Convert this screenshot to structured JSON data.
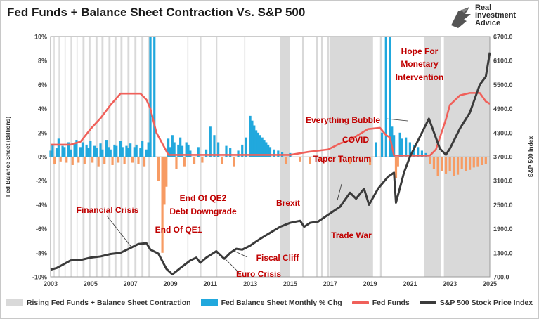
{
  "title": "Fed Funds + Balance Sheet Contraction Vs. S&P 500",
  "logo": {
    "line1": "Real",
    "line2": "Investment",
    "line3": "Advice"
  },
  "colors": {
    "shade": "#d9d9d9",
    "bs_pos": "#21a8dd",
    "bs_neg": "#f79b63",
    "fed_funds": "#f0605a",
    "spx": "#3b3b3b",
    "annotation": "#c00000"
  },
  "legend": {
    "shade": "Rising Fed Funds + Balance Sheet Contraction",
    "bs": "Fed Balance Sheet Monthly % Chg",
    "ff": "Fed Funds",
    "spx": "S&P 500 Stock Price Index"
  },
  "chart_data": {
    "type": "bar+line",
    "x_range": [
      2003,
      2025
    ],
    "x_ticks": [
      "2003",
      "2005",
      "2007",
      "2009",
      "2011",
      "2013",
      "2015",
      "2017",
      "2019",
      "2021",
      "2023",
      "2025"
    ],
    "y_left_label": "Fed Balance Sheet (Billions)",
    "y_left_ticks": [
      "10%",
      "8%",
      "6%",
      "4%",
      "2%",
      "0%",
      "-2%",
      "-4%",
      "-6%",
      "-8%",
      "-10%"
    ],
    "y_left_range": [
      -10,
      10
    ],
    "y_right_label": "S&P 500 Index",
    "y_right_ticks": [
      "6700.0",
      "6100.0",
      "5500.0",
      "4900.0",
      "4300.0",
      "3700.0",
      "3100.0",
      "2500.0",
      "1900.0",
      "1300.0",
      "700.0"
    ],
    "y_right_range": [
      700,
      6700
    ],
    "shaded_periods": [
      [
        2003.15,
        2003.2
      ],
      [
        2003.4,
        2003.45
      ],
      [
        2003.7,
        2003.75
      ],
      [
        2004.0,
        2004.05
      ],
      [
        2004.3,
        2004.35
      ],
      [
        2004.6,
        2004.7
      ],
      [
        2004.9,
        2005.0
      ],
      [
        2005.25,
        2005.35
      ],
      [
        2005.55,
        2005.65
      ],
      [
        2005.9,
        2006.0
      ],
      [
        2006.2,
        2006.3
      ],
      [
        2006.5,
        2006.6
      ],
      [
        2006.85,
        2006.95
      ],
      [
        2007.2,
        2007.3
      ],
      [
        2007.55,
        2007.65
      ],
      [
        2007.9,
        2008.0
      ],
      [
        2009.85,
        2009.9
      ],
      [
        2010.5,
        2010.55
      ],
      [
        2011.3,
        2011.35
      ],
      [
        2012.7,
        2012.75
      ],
      [
        2014.5,
        2015.0
      ],
      [
        2015.6,
        2015.7
      ],
      [
        2016.3,
        2016.4
      ],
      [
        2016.55,
        2016.65
      ],
      [
        2016.85,
        2016.95
      ],
      [
        2017.0,
        2019.15
      ],
      [
        2019.5,
        2019.6
      ],
      [
        2021.7,
        2022.55
      ],
      [
        2022.7,
        2025.0
      ]
    ],
    "series": [
      {
        "name": "Fed Balance Sheet Monthly % Chg",
        "kind": "bar",
        "x": [
          2003.0,
          2003.1,
          2003.2,
          2003.3,
          2003.4,
          2003.5,
          2003.6,
          2003.7,
          2003.8,
          2003.9,
          2004.0,
          2004.1,
          2004.2,
          2004.3,
          2004.4,
          2004.5,
          2004.6,
          2004.7,
          2004.8,
          2004.9,
          2005.0,
          2005.1,
          2005.2,
          2005.3,
          2005.4,
          2005.5,
          2005.6,
          2005.7,
          2005.8,
          2005.9,
          2006.0,
          2006.1,
          2006.2,
          2006.3,
          2006.4,
          2006.5,
          2006.6,
          2006.7,
          2006.8,
          2006.9,
          2007.0,
          2007.1,
          2007.2,
          2007.3,
          2007.4,
          2007.5,
          2007.6,
          2007.7,
          2007.8,
          2007.9,
          2008.0,
          2008.2,
          2008.4,
          2008.6,
          2008.7,
          2008.8,
          2008.9,
          2009.0,
          2009.1,
          2009.2,
          2009.3,
          2009.4,
          2009.5,
          2009.6,
          2009.7,
          2009.8,
          2009.9,
          2010.0,
          2010.2,
          2010.4,
          2010.6,
          2010.8,
          2011.0,
          2011.2,
          2011.4,
          2011.6,
          2011.8,
          2012.0,
          2012.2,
          2012.4,
          2012.6,
          2012.8,
          2013.0,
          2013.1,
          2013.2,
          2013.3,
          2013.4,
          2013.5,
          2013.6,
          2013.7,
          2013.8,
          2013.9,
          2014.0,
          2014.2,
          2014.4,
          2014.6,
          2014.8,
          2015.0,
          2015.5,
          2016.0,
          2016.5,
          2017.0,
          2017.5,
          2018.0,
          2018.5,
          2019.0,
          2019.3,
          2019.6,
          2019.8,
          2020.0,
          2020.1,
          2020.2,
          2020.3,
          2020.4,
          2020.5,
          2020.6,
          2020.8,
          2021.0,
          2021.2,
          2021.4,
          2021.6,
          2021.8,
          2022.0,
          2022.2,
          2022.4,
          2022.6,
          2022.8,
          2023.0,
          2023.2,
          2023.4,
          2023.6,
          2023.8,
          2024.0,
          2024.2,
          2024.4,
          2024.6,
          2024.8
        ],
        "values": [
          0.5,
          1.0,
          -0.6,
          0.7,
          1.5,
          -0.4,
          0.9,
          0.8,
          -0.5,
          1.2,
          0.6,
          -0.7,
          1.1,
          1.4,
          -0.5,
          0.8,
          1.2,
          -0.6,
          1.0,
          0.7,
          1.3,
          -0.5,
          0.9,
          0.7,
          -0.8,
          1.1,
          0.6,
          -0.6,
          1.4,
          0.8,
          0.6,
          -0.7,
          1.0,
          0.9,
          -0.5,
          1.3,
          0.8,
          -0.6,
          0.9,
          0.7,
          1.1,
          -0.5,
          0.8,
          1.0,
          -0.6,
          0.7,
          1.3,
          -0.8,
          0.6,
          1.2,
          10.0,
          10.0,
          -2.0,
          -8.0,
          -4.0,
          -2.5,
          1.5,
          0.8,
          1.8,
          1.2,
          -1.0,
          1.0,
          1.6,
          0.9,
          -0.8,
          1.2,
          1.0,
          0.5,
          -0.6,
          0.8,
          -0.5,
          0.6,
          2.5,
          1.8,
          1.2,
          -0.6,
          0.9,
          0.7,
          -0.8,
          0.5,
          1.0,
          1.6,
          3.4,
          3.0,
          2.6,
          2.2,
          2.0,
          1.8,
          1.6,
          1.4,
          1.2,
          1.0,
          0.8,
          0.6,
          0.5,
          0.4,
          -0.6,
          0.3,
          -0.4,
          -0.6,
          -0.3,
          -0.2,
          -0.5,
          -0.6,
          -0.4,
          -0.7,
          1.2,
          2.0,
          10.0,
          10.0,
          2.5,
          1.8,
          -1.8,
          -0.8,
          2.0,
          1.5,
          1.6,
          1.2,
          1.0,
          0.8,
          0.5,
          0.3,
          -0.6,
          -1.0,
          -1.6,
          -1.2,
          -1.4,
          -1.2,
          -1.6,
          -1.5,
          -1.0,
          -1.2,
          -1.1,
          -0.9,
          -0.8,
          -0.7,
          -0.6
        ]
      },
      {
        "name": "Fed Funds",
        "kind": "line",
        "x": [
          2003.0,
          2004.0,
          2004.5,
          2005.0,
          2005.5,
          2006.0,
          2006.5,
          2007.0,
          2007.5,
          2007.8,
          2008.0,
          2008.3,
          2008.9,
          2009.0,
          2012.0,
          2015.0,
          2015.9,
          2016.9,
          2017.5,
          2018.0,
          2018.5,
          2018.9,
          2019.5,
          2019.8,
          2020.0,
          2020.2,
          2021.0,
          2022.0,
          2022.3,
          2022.5,
          2022.8,
          2023.0,
          2023.5,
          2024.0,
          2024.5,
          2024.8,
          2025.0
        ],
        "values": [
          1.0,
          1.0,
          1.25,
          2.3,
          3.2,
          4.3,
          5.25,
          5.25,
          5.25,
          4.75,
          4.0,
          2.0,
          0.16,
          0.15,
          0.15,
          0.15,
          0.4,
          0.6,
          1.1,
          1.4,
          1.9,
          2.3,
          2.4,
          1.8,
          1.6,
          0.1,
          0.1,
          0.1,
          0.6,
          1.6,
          3.1,
          4.3,
          5.1,
          5.3,
          5.3,
          4.6,
          4.4
        ]
      },
      {
        "name": "S&P 500 Stock Price Index",
        "kind": "line",
        "x": [
          2003.0,
          2003.3,
          2003.6,
          2004.0,
          2004.5,
          2005.0,
          2005.5,
          2006.0,
          2006.5,
          2007.0,
          2007.4,
          2007.8,
          2008.0,
          2008.4,
          2008.8,
          2009.1,
          2009.5,
          2010.0,
          2010.3,
          2010.5,
          2010.8,
          2011.3,
          2011.7,
          2012.0,
          2012.3,
          2012.6,
          2013.0,
          2013.5,
          2014.0,
          2014.5,
          2015.0,
          2015.5,
          2015.7,
          2016.0,
          2016.4,
          2016.9,
          2017.5,
          2018.0,
          2018.3,
          2018.7,
          2018.95,
          2019.4,
          2019.9,
          2020.2,
          2020.3,
          2020.7,
          2021.0,
          2021.5,
          2021.95,
          2022.5,
          2022.8,
          2023.0,
          2023.5,
          2024.0,
          2024.5,
          2024.8,
          2025.0
        ],
        "values": [
          880,
          920,
          1000,
          1110,
          1120,
          1180,
          1210,
          1270,
          1300,
          1420,
          1520,
          1540,
          1380,
          1280,
          900,
          760,
          920,
          1110,
          1180,
          1050,
          1180,
          1340,
          1150,
          1300,
          1400,
          1380,
          1480,
          1650,
          1800,
          1950,
          2050,
          2100,
          1950,
          2050,
          2080,
          2250,
          2450,
          2800,
          2650,
          2900,
          2500,
          2900,
          3200,
          3300,
          2550,
          3300,
          3700,
          4200,
          4650,
          3900,
          3750,
          3900,
          4400,
          4800,
          5500,
          5700,
          6300
        ]
      }
    ],
    "annotations": [
      "Hope For",
      "Monetary",
      "Intervention",
      "Everything Bubble",
      "COVID",
      "Taper Tantrum",
      "Brexit",
      "Trade War",
      "End Of QE2",
      "Debt Downgrade",
      "Financial Crisis",
      "End Of QE1",
      "Fiscal Cliff",
      "Euro Crisis"
    ]
  }
}
